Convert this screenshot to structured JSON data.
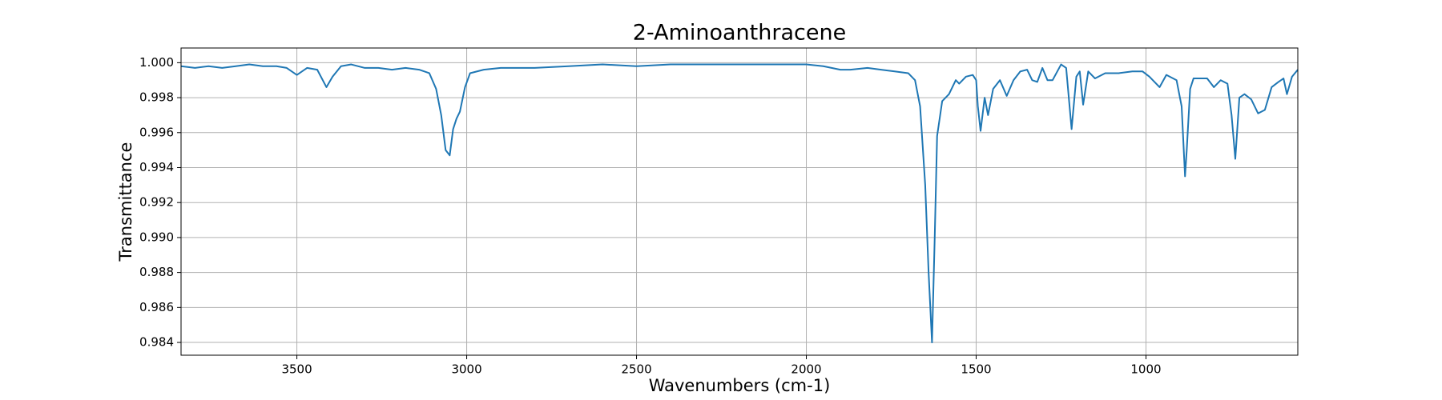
{
  "chart_data": {
    "type": "line",
    "title": "2-Aminoanthracene",
    "x_label": "Wavenumbers (cm-1)",
    "y_label": "Transmittance",
    "x": [
      3841,
      3800,
      3760,
      3720,
      3680,
      3640,
      3600,
      3560,
      3530,
      3500,
      3470,
      3440,
      3413,
      3395,
      3370,
      3340,
      3300,
      3260,
      3220,
      3180,
      3140,
      3110,
      3090,
      3075,
      3062,
      3050,
      3040,
      3030,
      3020,
      3005,
      2990,
      2950,
      2900,
      2800,
      2700,
      2600,
      2500,
      2400,
      2300,
      2200,
      2100,
      2000,
      1950,
      1900,
      1870,
      1820,
      1780,
      1740,
      1700,
      1680,
      1665,
      1650,
      1640,
      1630,
      1622,
      1615,
      1600,
      1580,
      1560,
      1550,
      1530,
      1510,
      1500,
      1495,
      1487,
      1475,
      1465,
      1450,
      1430,
      1410,
      1390,
      1370,
      1350,
      1335,
      1320,
      1305,
      1290,
      1275,
      1250,
      1235,
      1219,
      1205,
      1195,
      1185,
      1170,
      1150,
      1120,
      1080,
      1040,
      1010,
      990,
      960,
      940,
      910,
      895,
      885,
      880,
      870,
      860,
      840,
      820,
      800,
      780,
      760,
      748,
      737,
      725,
      710,
      690,
      670,
      650,
      630,
      610,
      595,
      585,
      570,
      553
    ],
    "series": [
      {
        "color": "#1f77b4",
        "values": [
          0.9998,
          0.9997,
          0.9998,
          0.9997,
          0.9998,
          0.9999,
          0.9998,
          0.9998,
          0.9997,
          0.9993,
          0.9997,
          0.9996,
          0.9986,
          0.9992,
          0.9998,
          0.9999,
          0.9997,
          0.9997,
          0.9996,
          0.9997,
          0.9996,
          0.9994,
          0.9985,
          0.997,
          0.995,
          0.9947,
          0.9962,
          0.9968,
          0.9972,
          0.9986,
          0.9994,
          0.9996,
          0.9997,
          0.9997,
          0.9998,
          0.9999,
          0.9998,
          0.9999,
          0.9999,
          0.9999,
          0.9999,
          0.9999,
          0.9998,
          0.9996,
          0.9996,
          0.9997,
          0.9996,
          0.9995,
          0.9994,
          0.999,
          0.9975,
          0.993,
          0.988,
          0.984,
          0.99,
          0.9958,
          0.9978,
          0.9982,
          0.999,
          0.9988,
          0.9992,
          0.9993,
          0.999,
          0.9975,
          0.9961,
          0.998,
          0.997,
          0.9985,
          0.999,
          0.9981,
          0.999,
          0.9995,
          0.9996,
          0.999,
          0.9989,
          0.9997,
          0.999,
          0.999,
          0.9999,
          0.9997,
          0.9962,
          0.9992,
          0.9995,
          0.9976,
          0.9995,
          0.9991,
          0.9994,
          0.9994,
          0.9995,
          0.9995,
          0.9992,
          0.9986,
          0.9993,
          0.999,
          0.9975,
          0.9935,
          0.995,
          0.9985,
          0.9991,
          0.9991,
          0.9991,
          0.9986,
          0.999,
          0.9988,
          0.997,
          0.9945,
          0.998,
          0.9982,
          0.9979,
          0.9971,
          0.9973,
          0.9986,
          0.9989,
          0.9991,
          0.9982,
          0.9992,
          0.9996
        ]
      }
    ],
    "xlim": [
      3841,
      553
    ],
    "ylim": [
      0.98327,
      1.00084
    ],
    "xticks": [
      3500,
      3000,
      2500,
      2000,
      1500,
      1000
    ],
    "yticks": [
      {
        "value": 1,
        "label": "1.000"
      },
      0.998,
      0.996,
      0.994,
      0.992,
      {
        "value": 0.99,
        "label": "0.990"
      },
      0.988,
      0.986,
      0.984
    ],
    "grid": true
  }
}
